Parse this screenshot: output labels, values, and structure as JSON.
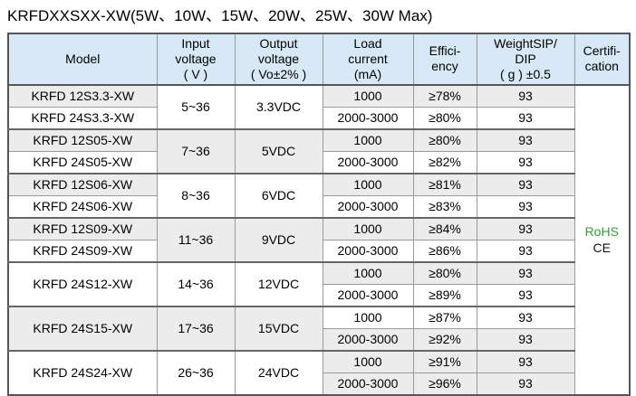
{
  "title": "KRFDXXSXX-XW(5W、10W、15W、20W、25W、30W Max)",
  "table": {
    "headers": [
      "Model",
      "Input\nvoltage\n( V )",
      "Output\nvoltage\n( Vo±2% )",
      "Load\ncurrent\n(mA)",
      "Effici-\nency",
      "WeightSIP/\nDIP\n( g ) ±0.5",
      "Certifi-\ncation"
    ],
    "certification": {
      "lines": [
        "RoHS",
        "CE"
      ],
      "line_colors": [
        "#2ea137",
        "#111111"
      ]
    },
    "colors": {
      "header_bg": "#d9e8f6",
      "stripe_gray": "#ececec",
      "border": "#9a9a9a",
      "border_heavy": "#555555",
      "rohs_green": "#2ea137"
    },
    "groups": [
      {
        "models": [
          "KRFD 12S3.3-XW",
          "KRFD 24S3.3-XW"
        ],
        "model_spans_group": false,
        "model_shades": [
          "gray",
          "white"
        ],
        "input_voltage": "5~36",
        "output_voltage": "3.3VDC",
        "band_shade": "white",
        "rows": [
          {
            "load_current": "1000",
            "efficiency": "≥78%",
            "weight": "93",
            "shade": "gray"
          },
          {
            "load_current": "2000-3000",
            "efficiency": "≥80%",
            "weight": "93",
            "shade": "white"
          }
        ]
      },
      {
        "models": [
          "KRFD 12S05-XW",
          "KRFD 24S05-XW"
        ],
        "model_spans_group": false,
        "model_shades": [
          "gray",
          "white"
        ],
        "input_voltage": "7~36",
        "output_voltage": "5VDC",
        "band_shade": "gray",
        "rows": [
          {
            "load_current": "1000",
            "efficiency": "≥80%",
            "weight": "93",
            "shade": "gray"
          },
          {
            "load_current": "2000-3000",
            "efficiency": "≥82%",
            "weight": "93",
            "shade": "white"
          }
        ]
      },
      {
        "models": [
          "KRFD 12S06-XW",
          "KRFD 24S06-XW"
        ],
        "model_spans_group": false,
        "model_shades": [
          "gray",
          "white"
        ],
        "input_voltage": "8~36",
        "output_voltage": "6VDC",
        "band_shade": "white",
        "rows": [
          {
            "load_current": "1000",
            "efficiency": "≥81%",
            "weight": "93",
            "shade": "gray"
          },
          {
            "load_current": "2000-3000",
            "efficiency": "≥83%",
            "weight": "93",
            "shade": "white"
          }
        ]
      },
      {
        "models": [
          "KRFD 12S09-XW",
          "KRFD 24S09-XW"
        ],
        "model_spans_group": false,
        "model_shades": [
          "gray",
          "white"
        ],
        "input_voltage": "11~36",
        "output_voltage": "9VDC",
        "band_shade": "gray",
        "rows": [
          {
            "load_current": "1000",
            "efficiency": "≥84%",
            "weight": "93",
            "shade": "gray"
          },
          {
            "load_current": "2000-3000",
            "efficiency": "≥86%",
            "weight": "93",
            "shade": "white"
          }
        ]
      },
      {
        "models": [
          "KRFD 24S12-XW"
        ],
        "model_spans_group": true,
        "model_shades": [
          "white"
        ],
        "input_voltage": "14~36",
        "output_voltage": "12VDC",
        "band_shade": "white",
        "rows": [
          {
            "load_current": "1000",
            "efficiency": "≥80%",
            "weight": "93",
            "shade": "gray"
          },
          {
            "load_current": "2000-3000",
            "efficiency": "≥89%",
            "weight": "93",
            "shade": "white"
          }
        ]
      },
      {
        "models": [
          "KRFD 24S15-XW"
        ],
        "model_spans_group": true,
        "model_shades": [
          "gray"
        ],
        "input_voltage": "17~36",
        "output_voltage": "15VDC",
        "band_shade": "gray",
        "rows": [
          {
            "load_current": "1000",
            "efficiency": "≥87%",
            "weight": "93",
            "shade": "white"
          },
          {
            "load_current": "2000-3000",
            "efficiency": "≥92%",
            "weight": "93",
            "shade": "gray"
          }
        ]
      },
      {
        "models": [
          "KRFD 24S24-XW"
        ],
        "model_spans_group": true,
        "model_shades": [
          "white"
        ],
        "input_voltage": "26~36",
        "output_voltage": "24VDC",
        "band_shade": "white",
        "rows": [
          {
            "load_current": "1000",
            "efficiency": "≥91%",
            "weight": "93",
            "shade": "gray"
          },
          {
            "load_current": "2000-3000",
            "efficiency": "≥96%",
            "weight": "93",
            "shade": "gray"
          }
        ]
      }
    ]
  }
}
